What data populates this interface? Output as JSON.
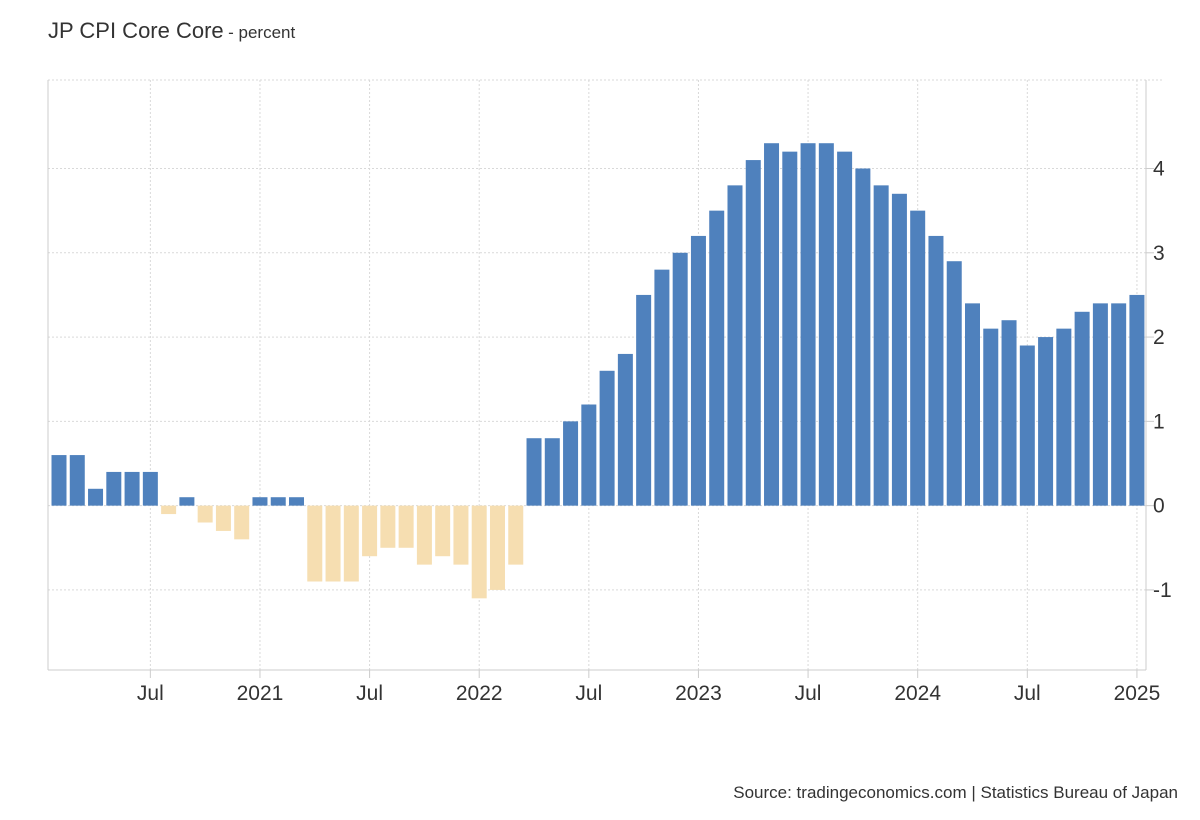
{
  "header": {
    "title": "JP CPI Core Core",
    "subtitle": "- percent"
  },
  "footer": {
    "source": "Source: tradingeconomics.com | Statistics Bureau of Japan"
  },
  "colors": {
    "positive": "#4f81bd",
    "negative": "#f6deb1",
    "grid": "#d9d9d9",
    "axis": "#cccccc",
    "text": "#333333"
  },
  "chart_data": {
    "type": "bar",
    "title": "JP CPI Core Core",
    "subtitle": "- percent",
    "xlabel": "",
    "ylabel": "",
    "ylim": [
      -1.95,
      5.05
    ],
    "grid": true,
    "y_axis_side": "right",
    "yticks": [
      -1,
      0,
      1,
      2,
      3,
      4
    ],
    "ytick_labels": [
      "-1",
      "0",
      "1",
      "2",
      "3",
      "4"
    ],
    "xtick_labels": [
      "Jul",
      "2021",
      "Jul",
      "2022",
      "Jul",
      "2023",
      "Jul",
      "2024",
      "Jul",
      "2025"
    ],
    "xtick_months": [
      "2020-07",
      "2021-01",
      "2021-07",
      "2022-01",
      "2022-07",
      "2023-01",
      "2023-07",
      "2024-01",
      "2024-07",
      "2025-01"
    ],
    "categories": [
      "2020-02",
      "2020-03",
      "2020-04",
      "2020-05",
      "2020-06",
      "2020-07",
      "2020-08",
      "2020-09",
      "2020-10",
      "2020-11",
      "2020-12",
      "2021-01",
      "2021-02",
      "2021-03",
      "2021-04",
      "2021-05",
      "2021-06",
      "2021-07",
      "2021-08",
      "2021-09",
      "2021-10",
      "2021-11",
      "2021-12",
      "2022-01",
      "2022-02",
      "2022-03",
      "2022-04",
      "2022-05",
      "2022-06",
      "2022-07",
      "2022-08",
      "2022-09",
      "2022-10",
      "2022-11",
      "2022-12",
      "2023-01",
      "2023-02",
      "2023-03",
      "2023-04",
      "2023-05",
      "2023-06",
      "2023-07",
      "2023-08",
      "2023-09",
      "2023-10",
      "2023-11",
      "2023-12",
      "2024-01",
      "2024-02",
      "2024-03",
      "2024-04",
      "2024-05",
      "2024-06",
      "2024-07",
      "2024-08",
      "2024-09",
      "2024-10",
      "2024-11",
      "2024-12",
      "2025-01"
    ],
    "values": [
      0.6,
      0.6,
      0.2,
      0.4,
      0.4,
      0.4,
      -0.1,
      0.1,
      -0.2,
      -0.3,
      -0.4,
      0.1,
      0.1,
      0.1,
      -0.9,
      -0.9,
      -0.9,
      -0.6,
      -0.5,
      -0.5,
      -0.7,
      -0.6,
      -0.7,
      -1.1,
      -1.0,
      -0.7,
      0.8,
      0.8,
      1.0,
      1.2,
      1.6,
      1.8,
      2.5,
      2.8,
      3.0,
      3.2,
      3.5,
      3.8,
      4.1,
      4.3,
      4.2,
      4.3,
      4.3,
      4.2,
      4.0,
      3.8,
      3.7,
      3.5,
      3.2,
      2.9,
      2.4,
      2.1,
      2.2,
      1.9,
      2.0,
      2.1,
      2.3,
      2.4,
      2.4,
      2.5
    ]
  }
}
